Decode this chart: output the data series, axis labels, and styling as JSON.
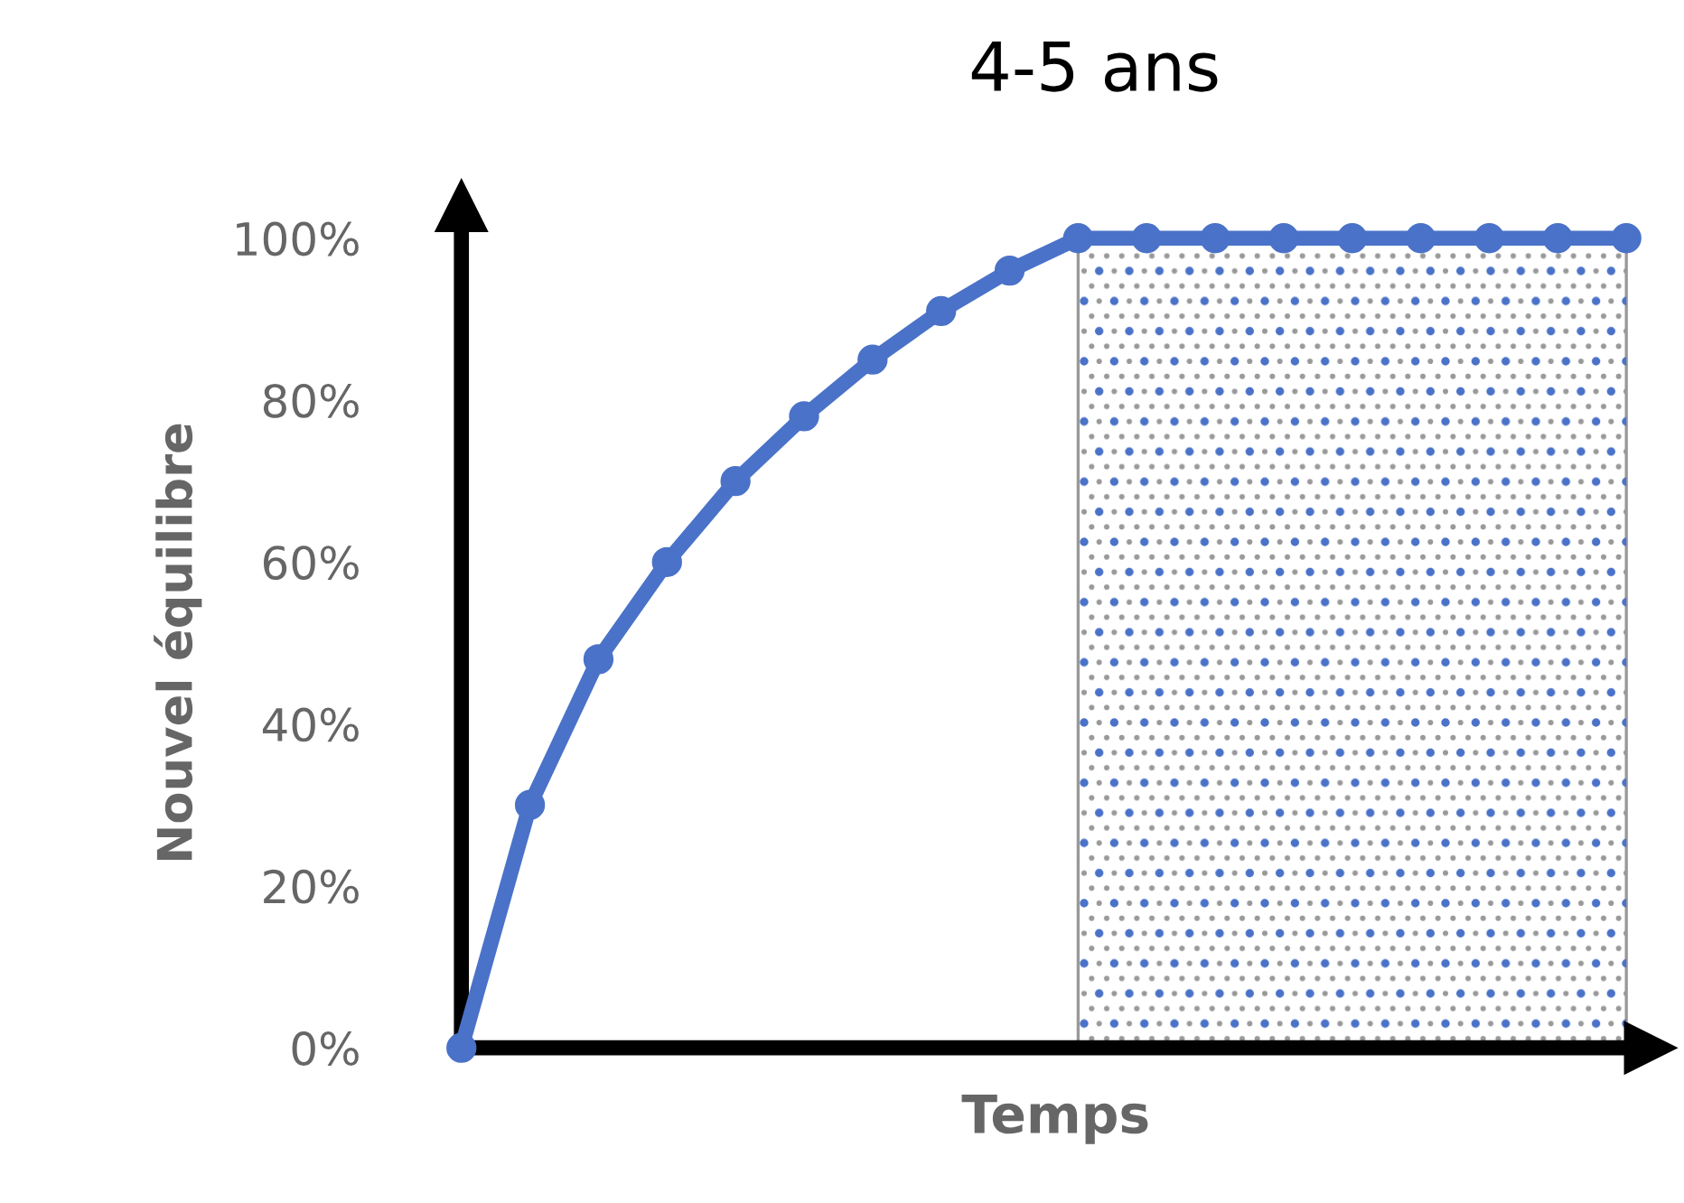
{
  "chart_data": {
    "type": "line",
    "title": "4-5 ans",
    "xlabel": "Temps",
    "ylabel": "Nouvel équilibre",
    "categories": [
      null,
      null,
      null,
      null,
      null,
      null,
      null,
      null,
      null,
      null,
      null,
      null,
      null,
      null,
      null,
      null,
      null,
      null
    ],
    "series": [
      {
        "color": "#4a72c8",
        "values": [
          0,
          30,
          48,
          60,
          70,
          78,
          85,
          91,
          96,
          100,
          100,
          100,
          100,
          100,
          100,
          100,
          100,
          100
        ]
      }
    ],
    "ylim": [
      0,
      100
    ],
    "yticks": [
      {
        "value": 0,
        "label": "0%"
      },
      {
        "value": 20,
        "label": "20%"
      },
      {
        "value": 40,
        "label": "40%"
      },
      {
        "value": 60,
        "label": "60%"
      },
      {
        "value": 80,
        "label": "80%"
      },
      {
        "value": 100,
        "label": "100%"
      }
    ],
    "marker": "circle",
    "grid": false,
    "legend": false,
    "tick_labels": "y"
  }
}
